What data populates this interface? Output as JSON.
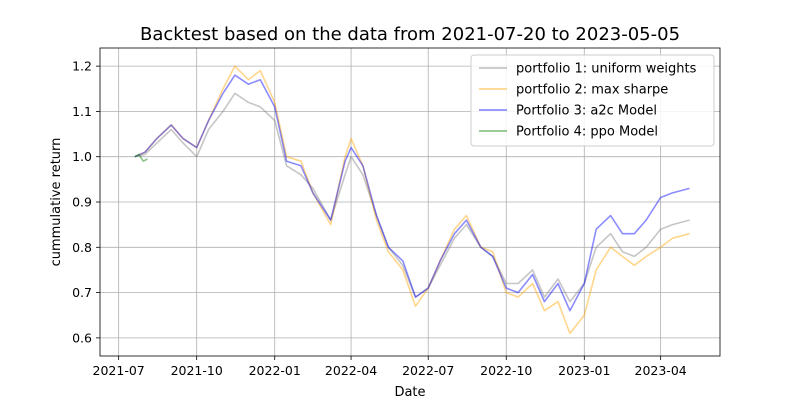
{
  "chart_data": {
    "type": "line",
    "title": "Backtest based on the data from 2021-07-20  to  2023-05-05",
    "xlabel": "Date",
    "ylabel": "cummulative return",
    "xlim": [
      "2021-06-09",
      "2023-06-10"
    ],
    "ylim": [
      0.56,
      1.24
    ],
    "x_ticks": [
      "2021-07",
      "2021-10",
      "2022-01",
      "2022-04",
      "2022-07",
      "2022-10",
      "2023-01",
      "2023-04"
    ],
    "y_ticks": [
      0.6,
      0.7,
      0.8,
      0.9,
      1.0,
      1.1,
      1.2
    ],
    "grid": true,
    "legend_position": "top-right",
    "series": [
      {
        "name": "portfolio 1: uniform weights",
        "color": "#808080",
        "points": [
          [
            "2021-07-20",
            1.0
          ],
          [
            "2021-08-01",
            1.005
          ],
          [
            "2021-08-15",
            1.03
          ],
          [
            "2021-09-01",
            1.06
          ],
          [
            "2021-09-15",
            1.03
          ],
          [
            "2021-10-01",
            1.0
          ],
          [
            "2021-10-15",
            1.06
          ],
          [
            "2021-11-01",
            1.1
          ],
          [
            "2021-11-15",
            1.14
          ],
          [
            "2021-12-01",
            1.12
          ],
          [
            "2021-12-15",
            1.11
          ],
          [
            "2022-01-01",
            1.08
          ],
          [
            "2022-01-15",
            0.98
          ],
          [
            "2022-02-01",
            0.96
          ],
          [
            "2022-02-15",
            0.93
          ],
          [
            "2022-03-08",
            0.86
          ],
          [
            "2022-03-25",
            0.96
          ],
          [
            "2022-04-01",
            1.0
          ],
          [
            "2022-04-15",
            0.96
          ],
          [
            "2022-05-01",
            0.87
          ],
          [
            "2022-05-15",
            0.8
          ],
          [
            "2022-06-01",
            0.76
          ],
          [
            "2022-06-16",
            0.69
          ],
          [
            "2022-07-01",
            0.71
          ],
          [
            "2022-07-15",
            0.76
          ],
          [
            "2022-08-01",
            0.82
          ],
          [
            "2022-08-15",
            0.85
          ],
          [
            "2022-09-01",
            0.8
          ],
          [
            "2022-09-15",
            0.78
          ],
          [
            "2022-10-01",
            0.72
          ],
          [
            "2022-10-15",
            0.72
          ],
          [
            "2022-11-01",
            0.75
          ],
          [
            "2022-11-15",
            0.69
          ],
          [
            "2022-12-01",
            0.73
          ],
          [
            "2022-12-15",
            0.68
          ],
          [
            "2023-01-01",
            0.72
          ],
          [
            "2023-01-15",
            0.8
          ],
          [
            "2023-02-01",
            0.83
          ],
          [
            "2023-02-15",
            0.79
          ],
          [
            "2023-03-01",
            0.78
          ],
          [
            "2023-03-15",
            0.8
          ],
          [
            "2023-04-01",
            0.84
          ],
          [
            "2023-04-15",
            0.85
          ],
          [
            "2023-05-05",
            0.86
          ]
        ]
      },
      {
        "name": "portfolio 2: max sharpe",
        "color": "#ffa500",
        "points": [
          [
            "2021-07-20",
            1.0
          ],
          [
            "2021-08-01",
            1.01
          ],
          [
            "2021-08-15",
            1.04
          ],
          [
            "2021-09-01",
            1.07
          ],
          [
            "2021-09-15",
            1.04
          ],
          [
            "2021-10-01",
            1.02
          ],
          [
            "2021-10-15",
            1.08
          ],
          [
            "2021-11-01",
            1.15
          ],
          [
            "2021-11-15",
            1.2
          ],
          [
            "2021-12-01",
            1.17
          ],
          [
            "2021-12-15",
            1.19
          ],
          [
            "2022-01-01",
            1.12
          ],
          [
            "2022-01-15",
            1.0
          ],
          [
            "2022-02-01",
            0.99
          ],
          [
            "2022-02-15",
            0.92
          ],
          [
            "2022-03-08",
            0.85
          ],
          [
            "2022-03-25",
            1.0
          ],
          [
            "2022-04-01",
            1.04
          ],
          [
            "2022-04-15",
            0.98
          ],
          [
            "2022-05-01",
            0.86
          ],
          [
            "2022-05-15",
            0.79
          ],
          [
            "2022-06-01",
            0.75
          ],
          [
            "2022-06-16",
            0.67
          ],
          [
            "2022-07-01",
            0.71
          ],
          [
            "2022-07-15",
            0.77
          ],
          [
            "2022-08-01",
            0.84
          ],
          [
            "2022-08-15",
            0.87
          ],
          [
            "2022-09-01",
            0.8
          ],
          [
            "2022-09-15",
            0.79
          ],
          [
            "2022-10-01",
            0.7
          ],
          [
            "2022-10-15",
            0.69
          ],
          [
            "2022-11-01",
            0.72
          ],
          [
            "2022-11-15",
            0.66
          ],
          [
            "2022-12-01",
            0.68
          ],
          [
            "2022-12-15",
            0.61
          ],
          [
            "2023-01-01",
            0.65
          ],
          [
            "2023-01-15",
            0.75
          ],
          [
            "2023-02-01",
            0.8
          ],
          [
            "2023-02-15",
            0.78
          ],
          [
            "2023-03-01",
            0.76
          ],
          [
            "2023-03-15",
            0.78
          ],
          [
            "2023-04-01",
            0.8
          ],
          [
            "2023-04-15",
            0.82
          ],
          [
            "2023-05-05",
            0.83
          ]
        ]
      },
      {
        "name": "Portfolio 3: a2c Model",
        "color": "#0000ff",
        "points": [
          [
            "2021-07-20",
            1.0
          ],
          [
            "2021-08-01",
            1.01
          ],
          [
            "2021-08-15",
            1.04
          ],
          [
            "2021-09-01",
            1.07
          ],
          [
            "2021-09-15",
            1.04
          ],
          [
            "2021-10-01",
            1.02
          ],
          [
            "2021-10-15",
            1.08
          ],
          [
            "2021-11-01",
            1.14
          ],
          [
            "2021-11-15",
            1.18
          ],
          [
            "2021-12-01",
            1.16
          ],
          [
            "2021-12-15",
            1.17
          ],
          [
            "2022-01-01",
            1.11
          ],
          [
            "2022-01-15",
            0.99
          ],
          [
            "2022-02-01",
            0.98
          ],
          [
            "2022-02-15",
            0.92
          ],
          [
            "2022-03-08",
            0.86
          ],
          [
            "2022-03-25",
            0.99
          ],
          [
            "2022-04-01",
            1.02
          ],
          [
            "2022-04-15",
            0.98
          ],
          [
            "2022-05-01",
            0.87
          ],
          [
            "2022-05-15",
            0.8
          ],
          [
            "2022-06-01",
            0.77
          ],
          [
            "2022-06-16",
            0.69
          ],
          [
            "2022-07-01",
            0.71
          ],
          [
            "2022-07-15",
            0.77
          ],
          [
            "2022-08-01",
            0.83
          ],
          [
            "2022-08-15",
            0.86
          ],
          [
            "2022-09-01",
            0.8
          ],
          [
            "2022-09-15",
            0.78
          ],
          [
            "2022-10-01",
            0.71
          ],
          [
            "2022-10-15",
            0.7
          ],
          [
            "2022-11-01",
            0.74
          ],
          [
            "2022-11-15",
            0.68
          ],
          [
            "2022-12-01",
            0.72
          ],
          [
            "2022-12-15",
            0.66
          ],
          [
            "2023-01-01",
            0.72
          ],
          [
            "2023-01-15",
            0.84
          ],
          [
            "2023-02-01",
            0.87
          ],
          [
            "2023-02-15",
            0.83
          ],
          [
            "2023-03-01",
            0.83
          ],
          [
            "2023-03-15",
            0.86
          ],
          [
            "2023-04-01",
            0.91
          ],
          [
            "2023-04-15",
            0.92
          ],
          [
            "2023-05-05",
            0.93
          ]
        ]
      },
      {
        "name": "Portfolio 4: ppo Model",
        "color": "#008000",
        "points": [
          [
            "2021-07-20",
            1.0
          ],
          [
            "2021-07-25",
            1.005
          ],
          [
            "2021-07-30",
            0.99
          ],
          [
            "2021-08-04",
            0.995
          ]
        ]
      }
    ]
  }
}
